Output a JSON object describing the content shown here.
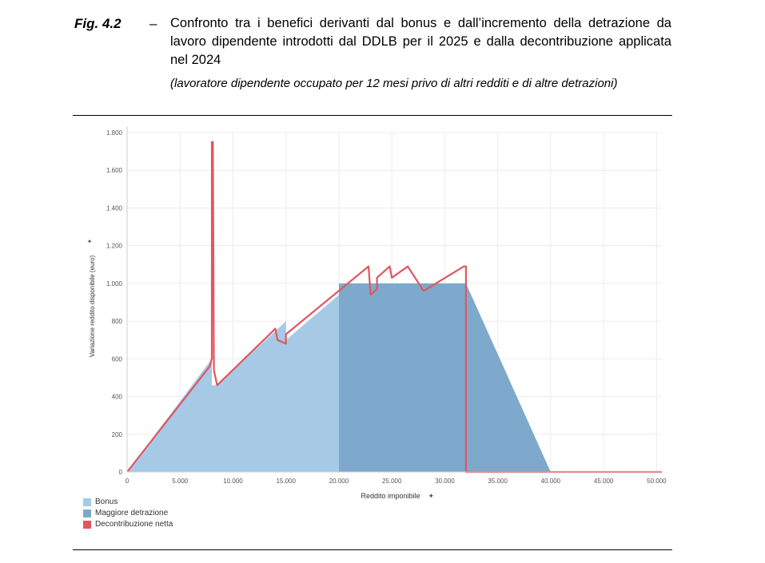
{
  "figure": {
    "label": "Fig. 4.2",
    "dash": "–",
    "title": "Confronto tra i benefici derivanti dal bonus e dall’incremento della detrazione da lavoro dipendente introdotti dal DDLB per il 2025 e dalla decontribuzione applicata nel 2024",
    "subtitle": "(lavoratore dipendente occupato per 12 mesi privo di altri redditi e di altre detrazioni)"
  },
  "chart_data": {
    "type": "area",
    "xlabel": "Reddito imponibile",
    "ylabel": "Variazione reddito disponibile (euro)",
    "xlim": [
      0,
      50500
    ],
    "ylim": [
      0,
      1800
    ],
    "x_ticks": [
      0,
      5000,
      10000,
      15000,
      20000,
      25000,
      30000,
      35000,
      40000,
      45000,
      50000
    ],
    "x_tick_labels": [
      "0",
      "5.000",
      "10.000",
      "15.000",
      "20.000",
      "25.000",
      "30.000",
      "35.000",
      "40.000",
      "45.000",
      "50.000"
    ],
    "y_ticks": [
      0,
      200,
      400,
      600,
      800,
      1000,
      1200,
      1400,
      1600,
      1800
    ],
    "y_tick_labels": [
      "0",
      "200",
      "400",
      "600",
      "800",
      "1.000",
      "1.200",
      "1.400",
      "1.600",
      "1.800"
    ],
    "grid": true,
    "legend_position": "bottom-left",
    "series": [
      {
        "name": "Bonus",
        "color": "#a6cae6",
        "kind": "area",
        "points": [
          [
            0,
            0
          ],
          [
            8000,
            600
          ],
          [
            8000,
            460
          ],
          [
            8500,
            460
          ],
          [
            15000,
            800
          ],
          [
            15000,
            700
          ],
          [
            20000,
            940
          ],
          [
            20000,
            0
          ]
        ]
      },
      {
        "name": "Maggiore detrazione",
        "color": "#7ea9cc",
        "kind": "area",
        "points": [
          [
            20000,
            0
          ],
          [
            20000,
            1000
          ],
          [
            32000,
            1000
          ],
          [
            40000,
            0
          ]
        ]
      },
      {
        "name": "Decontribuzione netta",
        "color": "#e05660",
        "kind": "line",
        "points": [
          [
            0,
            0
          ],
          [
            7800,
            560
          ],
          [
            8000,
            600
          ],
          [
            8000,
            1750
          ],
          [
            8100,
            1750
          ],
          [
            8200,
            540
          ],
          [
            8500,
            460
          ],
          [
            14000,
            760
          ],
          [
            14200,
            700
          ],
          [
            15000,
            680
          ],
          [
            15000,
            730
          ],
          [
            22800,
            1090
          ],
          [
            23000,
            940
          ],
          [
            23600,
            970
          ],
          [
            23600,
            1030
          ],
          [
            24800,
            1090
          ],
          [
            25000,
            1030
          ],
          [
            26500,
            1090
          ],
          [
            28000,
            960
          ],
          [
            31800,
            1090
          ],
          [
            32000,
            1090
          ],
          [
            32000,
            0
          ],
          [
            50500,
            0
          ]
        ]
      }
    ]
  }
}
